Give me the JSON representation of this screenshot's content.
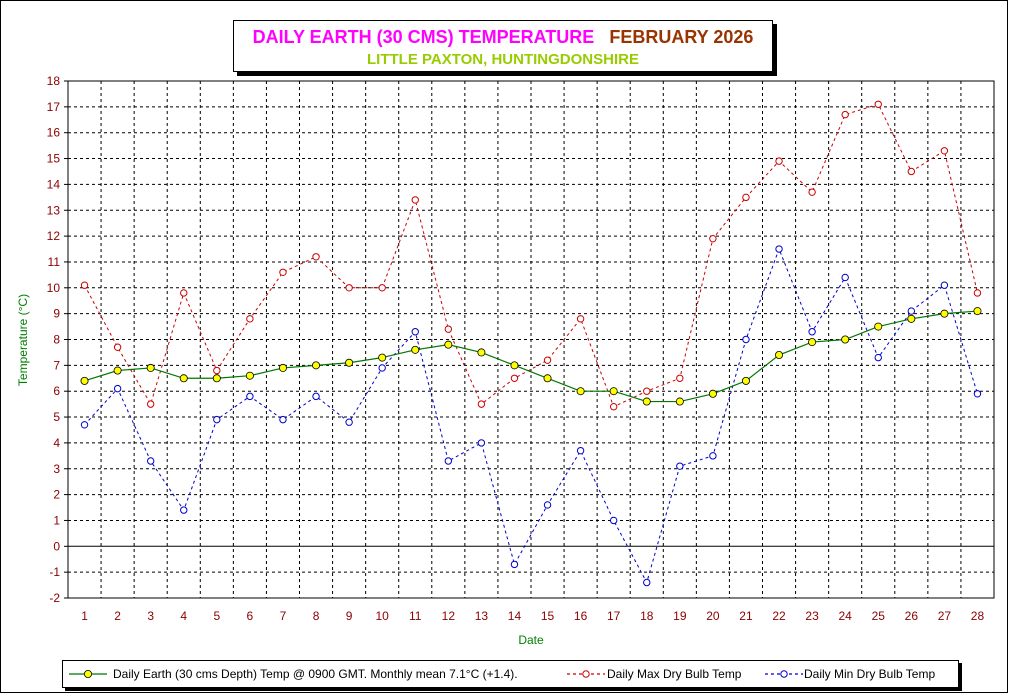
{
  "chart_data": {
    "type": "line",
    "title": {
      "part1": "DAILY EARTH (30 CMS) TEMPERATURE",
      "part2": "FEBRUARY 2026",
      "subtitle": "LITTLE PAXTON, HUNTINGDONSHIRE"
    },
    "xlabel": "Date",
    "ylabel": "Temperature (°C)",
    "ylim": [
      -2,
      18
    ],
    "grid": true,
    "legend_position": "bottom",
    "x": [
      1,
      2,
      3,
      4,
      5,
      6,
      7,
      8,
      9,
      10,
      11,
      12,
      13,
      14,
      15,
      16,
      17,
      18,
      19,
      20,
      21,
      22,
      23,
      24,
      25,
      26,
      27,
      28
    ],
    "series": [
      {
        "name": "Daily Earth (30 cms Depth) Temp @ 0900 GMT. Monthly mean 7.1°C (+1.4).",
        "color": "#007700",
        "marker_color": "#ffff00",
        "style": "solid",
        "values": [
          6.4,
          6.8,
          6.9,
          6.5,
          6.5,
          6.6,
          6.9,
          7.0,
          7.1,
          7.3,
          7.6,
          7.8,
          7.5,
          7.0,
          6.5,
          6.0,
          6.0,
          5.6,
          5.6,
          5.9,
          6.4,
          7.4,
          7.9,
          8.0,
          8.5,
          8.8,
          9.0,
          9.1
        ]
      },
      {
        "name": "Daily Max Dry Bulb Temp",
        "color": "#cc0000",
        "style": "dashed",
        "values": [
          10.1,
          7.7,
          5.5,
          9.8,
          6.8,
          8.8,
          10.6,
          11.2,
          10.0,
          10.0,
          13.4,
          8.4,
          5.5,
          6.5,
          7.2,
          8.8,
          5.4,
          6.0,
          6.5,
          11.9,
          13.5,
          14.9,
          13.7,
          16.7,
          17.1,
          14.5,
          15.3,
          9.8
        ]
      },
      {
        "name": "Daily Min Dry Bulb Temp",
        "color": "#0000cc",
        "style": "dashed",
        "values": [
          4.7,
          6.1,
          3.3,
          1.4,
          4.9,
          5.8,
          4.9,
          5.8,
          4.8,
          6.9,
          8.3,
          3.3,
          4.0,
          -0.7,
          1.6,
          3.7,
          1.0,
          -1.4,
          3.1,
          3.5,
          8.0,
          11.5,
          8.3,
          10.4,
          7.3,
          9.1,
          10.1,
          5.9
        ]
      }
    ]
  },
  "colors": {
    "title_part1": "#ff00ff",
    "title_part2": "#993300",
    "subtitle": "#99cc00",
    "axis_text": "#8b0000",
    "axis_title": "#008000"
  }
}
